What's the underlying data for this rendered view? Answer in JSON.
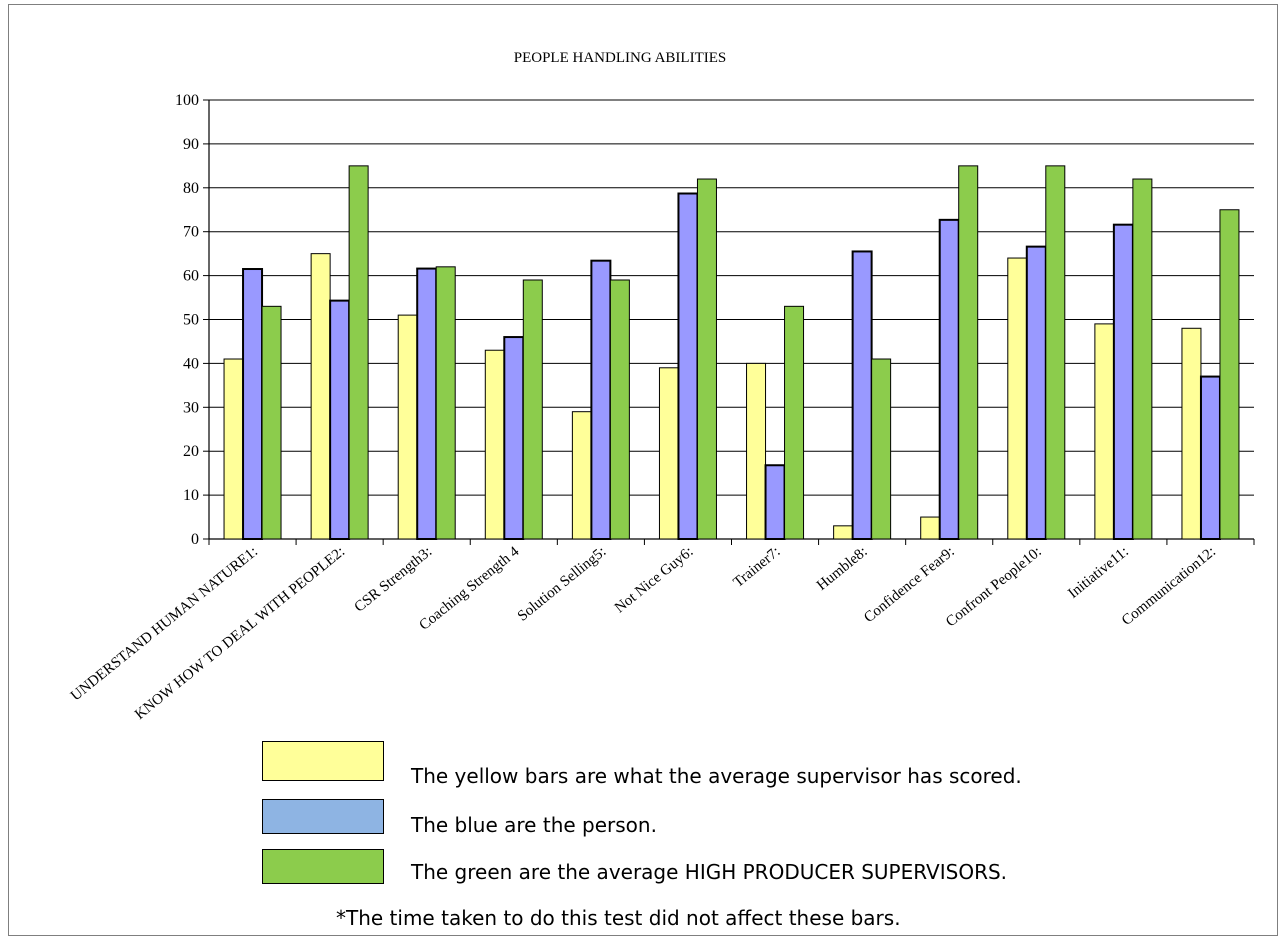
{
  "chart_data": {
    "type": "bar",
    "title": "PEOPLE HANDLING ABILITIES",
    "categories": [
      "UNDERSTAND HUMAN NATURE1:",
      "KNOW HOW TO DEAL WITH PEOPLE2:",
      "CSR Strength3:",
      "Coaching Strength 4",
      "Solution Selling5:",
      "Not Nice Guy6:",
      "Trainer7:",
      "Humble8:",
      "Confidence Fear9:",
      "Confront People10:",
      "Initiative11:",
      "Communication12:"
    ],
    "series": [
      {
        "values": [
          41,
          65,
          51,
          43,
          29,
          39,
          40,
          3,
          5,
          64,
          49,
          48
        ]
      },
      {
        "values": [
          61.5,
          54.3,
          61.6,
          46,
          63.4,
          78.7,
          16.8,
          65.5,
          72.7,
          66.6,
          71.6,
          37
        ]
      },
      {
        "values": [
          53,
          85,
          62,
          59,
          59,
          82,
          53,
          41,
          85,
          85,
          82,
          75
        ]
      }
    ],
    "ylim": [
      0,
      100
    ],
    "yticks": [
      0,
      10,
      20,
      30,
      40,
      50,
      60,
      70,
      80,
      90,
      100
    ],
    "grid": true,
    "xlabel": "",
    "ylabel": ""
  },
  "colors": {
    "yellow": "#ffff99",
    "blue": "#9999ff",
    "green": "#8ccc4c",
    "legend_blue": "#8eb4e3",
    "grid": "#000000"
  },
  "legend": {
    "items": [
      {
        "text": "The yellow bars are what the average supervisor has scored."
      },
      {
        "text": "The blue are the person."
      },
      {
        "text": "The green are the average HIGH PRODUCER SUPERVISORS."
      }
    ],
    "footnote": "*The time taken to do this test did not affect these bars."
  }
}
